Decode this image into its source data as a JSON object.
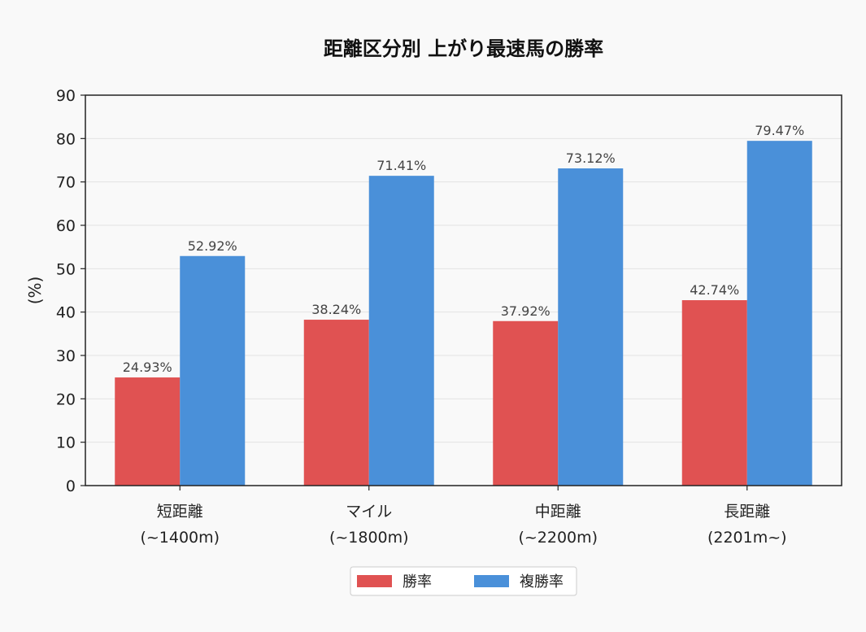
{
  "chart_data": {
    "type": "bar",
    "title": "距離区分別 上がり最速馬の勝率",
    "ylabel": "(%)",
    "xlabel": "",
    "ylim": [
      0,
      90
    ],
    "yticks": [
      0,
      10,
      20,
      30,
      40,
      50,
      60,
      70,
      80,
      90
    ],
    "grid": true,
    "legend_position": "bottom-center",
    "categories": [
      [
        "短距離",
        "(~1400m)"
      ],
      [
        "マイル",
        "(~1800m)"
      ],
      [
        "中距離",
        "(~2200m)"
      ],
      [
        "長距離",
        "(2201m~)"
      ]
    ],
    "series": [
      {
        "name": "勝率",
        "color": "#e05252",
        "values": [
          24.93,
          38.24,
          37.92,
          42.74
        ],
        "labels": [
          "24.93%",
          "38.24%",
          "37.92%",
          "42.74%"
        ]
      },
      {
        "name": "複勝率",
        "color": "#4a90d9",
        "values": [
          52.92,
          71.41,
          73.12,
          79.47
        ],
        "labels": [
          "52.92%",
          "71.41%",
          "73.12%",
          "79.47%"
        ]
      }
    ]
  }
}
